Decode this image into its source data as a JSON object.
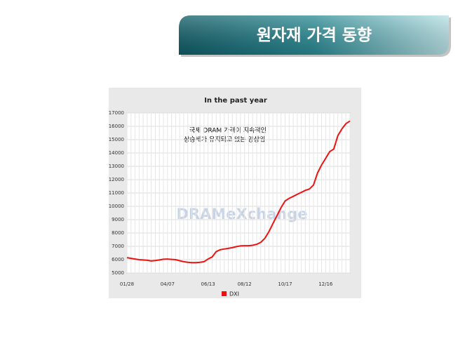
{
  "header": {
    "title": "원자재 가격 동향"
  },
  "chart_data": {
    "type": "line",
    "title": "In the past year",
    "annotations": [
      "국제 DRAM 가격이 지속적인",
      "상승세가 유지되고 있는 양상임"
    ],
    "watermark": "DRAMeXchange",
    "categories": [
      "01/28",
      null,
      null,
      null,
      null,
      null,
      null,
      null,
      null,
      null,
      "04/07",
      null,
      null,
      null,
      null,
      null,
      null,
      null,
      null,
      null,
      "06/13",
      null,
      null,
      null,
      null,
      null,
      null,
      null,
      null,
      "08/12",
      null,
      null,
      null,
      null,
      null,
      null,
      null,
      null,
      null,
      "10/17",
      null,
      null,
      null,
      null,
      null,
      null,
      null,
      null,
      null,
      "12/16",
      null,
      null,
      null,
      null,
      null,
      null
    ],
    "series": [
      {
        "name": "DXI",
        "color": "#ee1111",
        "values": [
          6150,
          6100,
          6050,
          6000,
          5980,
          5950,
          5900,
          5930,
          5980,
          6030,
          6050,
          6020,
          6000,
          5920,
          5850,
          5800,
          5780,
          5780,
          5800,
          5850,
          6050,
          6200,
          6600,
          6750,
          6800,
          6850,
          6900,
          6980,
          7030,
          7050,
          7050,
          7080,
          7150,
          7300,
          7600,
          8100,
          8700,
          9300,
          9900,
          10400,
          10600,
          10750,
          10900,
          11050,
          11200,
          11300,
          11600,
          12500,
          13100,
          13600,
          14100,
          14300,
          15300,
          15800,
          16200,
          16400
        ]
      }
    ],
    "ylim": [
      5000,
      17000
    ],
    "yticks": [
      5000,
      6000,
      7000,
      8000,
      9000,
      10000,
      11000,
      12000,
      13000,
      14000,
      15000,
      16000,
      17000
    ],
    "grid": true
  }
}
